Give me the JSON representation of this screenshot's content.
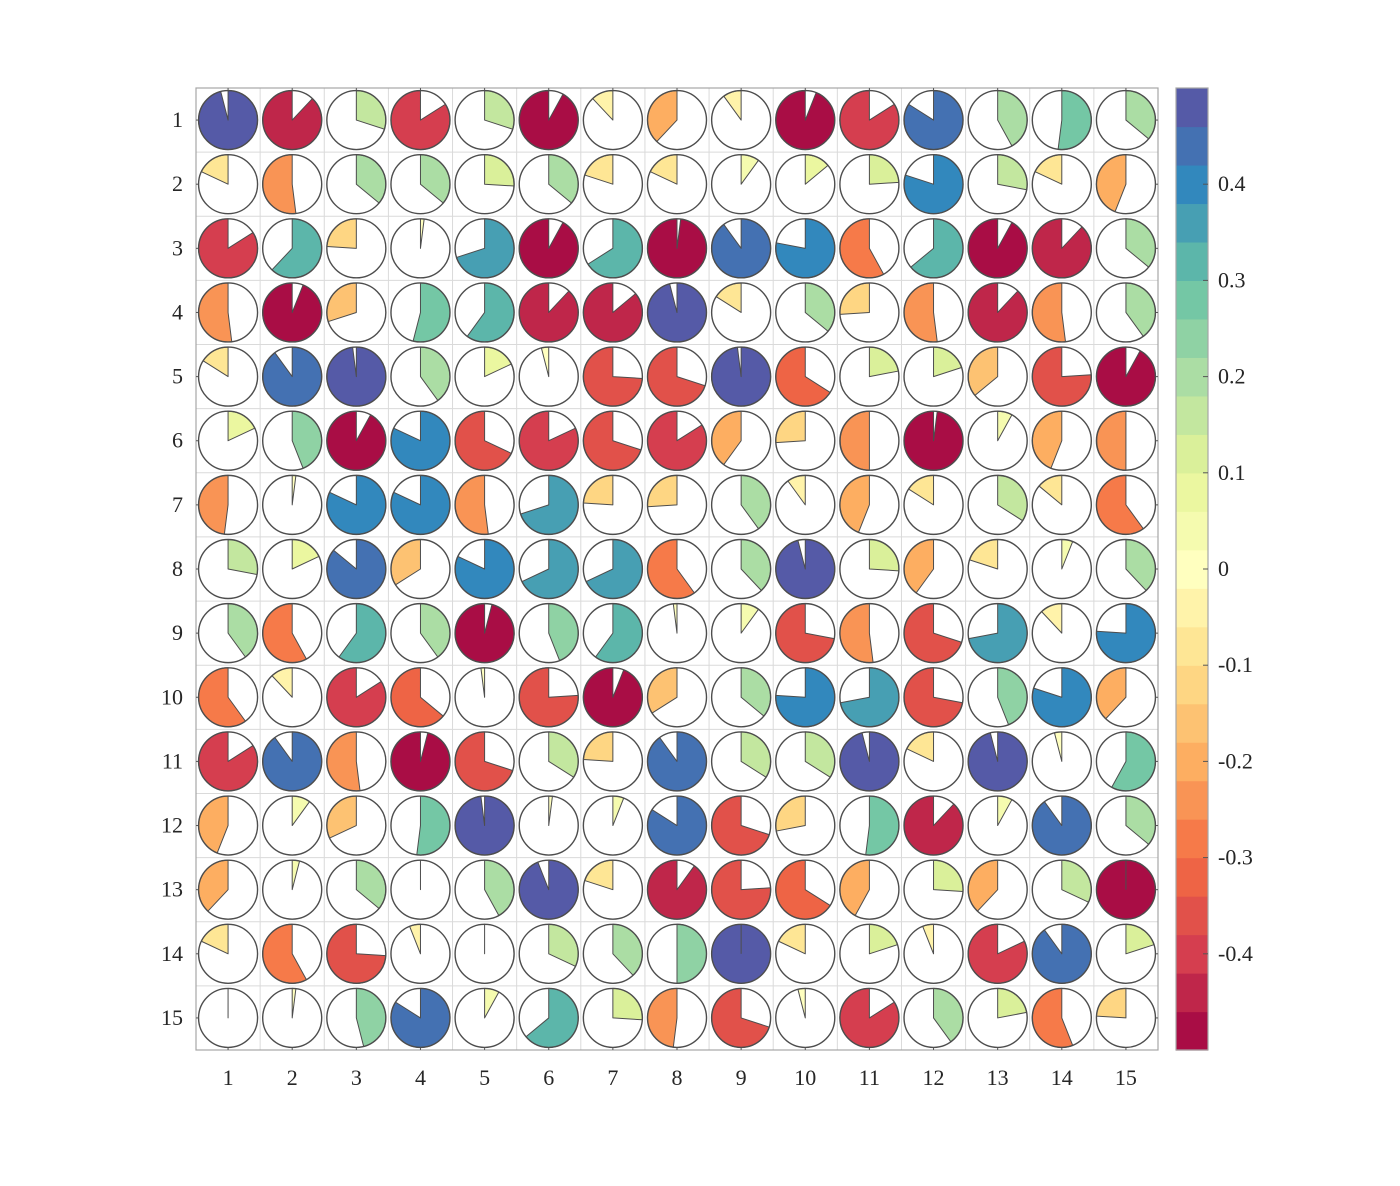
{
  "chart_data": {
    "type": "heatmap",
    "subtype": "pie-correlation-matrix",
    "rows": [
      "1",
      "2",
      "3",
      "4",
      "5",
      "6",
      "7",
      "8",
      "9",
      "10",
      "11",
      "12",
      "13",
      "14",
      "15"
    ],
    "cols": [
      "1",
      "2",
      "3",
      "4",
      "5",
      "6",
      "7",
      "8",
      "9",
      "10",
      "11",
      "12",
      "13",
      "14",
      "15"
    ],
    "values": [
      [
        0.48,
        -0.44,
        0.15,
        -0.42,
        0.15,
        -0.46,
        -0.06,
        -0.19,
        -0.05,
        -0.47,
        -0.42,
        0.42,
        0.21,
        0.26,
        0.18
      ],
      [
        -0.09,
        -0.26,
        0.18,
        0.18,
        0.13,
        0.18,
        -0.1,
        -0.09,
        0.05,
        0.07,
        0.12,
        0.4,
        0.14,
        -0.09,
        -0.22
      ],
      [
        -0.42,
        0.31,
        -0.12,
        0.01,
        0.35,
        -0.46,
        0.33,
        -0.49,
        0.45,
        0.39,
        -0.29,
        0.32,
        -0.46,
        -0.44,
        0.18
      ],
      [
        -0.26,
        -0.47,
        -0.15,
        0.27,
        0.3,
        -0.44,
        -0.43,
        0.48,
        -0.08,
        0.18,
        -0.13,
        -0.26,
        -0.44,
        -0.26,
        0.2
      ],
      [
        -0.08,
        0.45,
        0.49,
        0.2,
        0.09,
        -0.02,
        -0.37,
        -0.35,
        0.49,
        -0.33,
        0.11,
        0.1,
        -0.18,
        -0.38,
        -0.46
      ],
      [
        0.09,
        0.22,
        -0.46,
        0.41,
        -0.34,
        -0.41,
        -0.35,
        -0.42,
        -0.2,
        -0.13,
        -0.25,
        -0.49,
        0.04,
        -0.22,
        -0.25
      ],
      [
        -0.24,
        0.01,
        0.41,
        0.41,
        -0.26,
        0.35,
        -0.12,
        -0.13,
        0.2,
        -0.05,
        -0.22,
        -0.08,
        0.17,
        -0.07,
        -0.3
      ],
      [
        0.14,
        0.09,
        0.43,
        -0.17,
        0.41,
        0.34,
        0.34,
        -0.3,
        0.19,
        0.48,
        0.13,
        -0.2,
        -0.1,
        0.03,
        0.19
      ],
      [
        0.2,
        -0.29,
        0.3,
        0.2,
        -0.48,
        0.22,
        0.3,
        -0.01,
        0.05,
        -0.36,
        -0.26,
        -0.35,
        0.36,
        -0.06,
        0.38
      ],
      [
        -0.3,
        -0.06,
        -0.42,
        -0.32,
        -0.01,
        -0.38,
        -0.47,
        -0.17,
        0.18,
        0.38,
        0.36,
        -0.36,
        0.22,
        0.4,
        -0.19
      ],
      [
        -0.42,
        0.45,
        -0.26,
        -0.48,
        -0.35,
        0.17,
        -0.12,
        0.45,
        0.17,
        0.17,
        0.48,
        -0.09,
        0.48,
        -0.02,
        0.29
      ],
      [
        -0.22,
        0.05,
        -0.16,
        0.26,
        0.49,
        0.01,
        0.03,
        0.42,
        -0.35,
        -0.14,
        0.26,
        -0.44,
        0.04,
        0.45,
        0.18
      ],
      [
        -0.19,
        0.02,
        0.18,
        0.0,
        0.21,
        0.47,
        -0.1,
        -0.45,
        -0.38,
        -0.33,
        -0.21,
        0.13,
        -0.19,
        0.16,
        -0.5
      ],
      [
        -0.09,
        -0.29,
        -0.37,
        -0.03,
        0.0,
        0.16,
        0.19,
        0.25,
        0.5,
        -0.09,
        0.1,
        -0.03,
        -0.41,
        0.45,
        0.1
      ],
      [
        0.0,
        0.01,
        0.23,
        0.42,
        0.04,
        0.32,
        0.13,
        -0.24,
        -0.35,
        -0.02,
        -0.42,
        0.2,
        0.11,
        -0.28,
        -0.12
      ]
    ],
    "colorbar": {
      "range": [
        -0.5,
        0.5
      ],
      "levels": 25,
      "ticks": [
        -0.4,
        -0.3,
        -0.2,
        -0.1,
        0,
        0.1,
        0.2,
        0.3,
        0.4
      ],
      "tick_labels": [
        "-0.4",
        "-0.3",
        "-0.2",
        "-0.1",
        "0",
        "0.1",
        "0.2",
        "0.3",
        "0.4"
      ],
      "colormap_stops": [
        "#9e0142",
        "#d53e4f",
        "#f46d43",
        "#fdae61",
        "#fee08b",
        "#ffffbf",
        "#e6f598",
        "#abdda4",
        "#66c2a5",
        "#3288bd",
        "#5e4fa2"
      ]
    },
    "colors": {
      "grid": "#dadada",
      "axis": "#a6a6a6",
      "pie_edge": "#4d4d4d"
    },
    "grid": true,
    "title": "",
    "xlabel": "",
    "ylabel": ""
  }
}
